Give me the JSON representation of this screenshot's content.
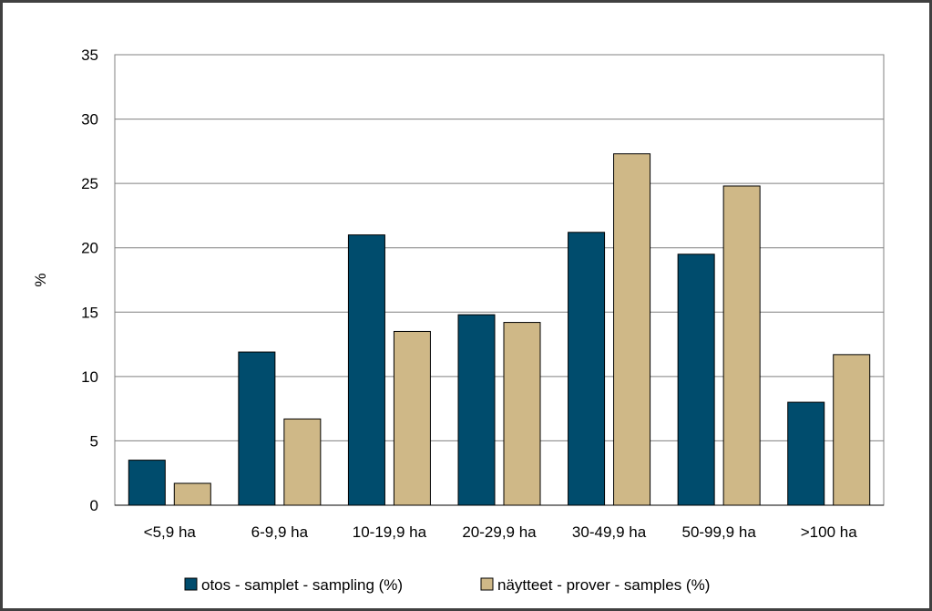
{
  "chart_data": {
    "type": "bar",
    "title": "",
    "xlabel": "",
    "ylabel": "%",
    "ylim": [
      0,
      35
    ],
    "yticks": [
      0,
      5,
      10,
      15,
      20,
      25,
      30,
      35
    ],
    "grid": "horizontal",
    "legend_position": "bottom",
    "categories": [
      "<5,9 ha",
      "6-9,9 ha",
      "10-19,9 ha",
      "20-29,9 ha",
      "30-49,9 ha",
      "50-99,9 ha",
      ">100 ha"
    ],
    "series": [
      {
        "name": "otos - samplet - sampling (%)",
        "color": "#004c6d",
        "values": [
          3.5,
          11.9,
          21.0,
          14.8,
          21.2,
          19.5,
          8.0
        ]
      },
      {
        "name": "näytteet - prover - samples (%)",
        "color": "#cfb887",
        "values": [
          1.7,
          6.7,
          13.5,
          14.2,
          27.3,
          24.8,
          11.7
        ]
      }
    ]
  }
}
